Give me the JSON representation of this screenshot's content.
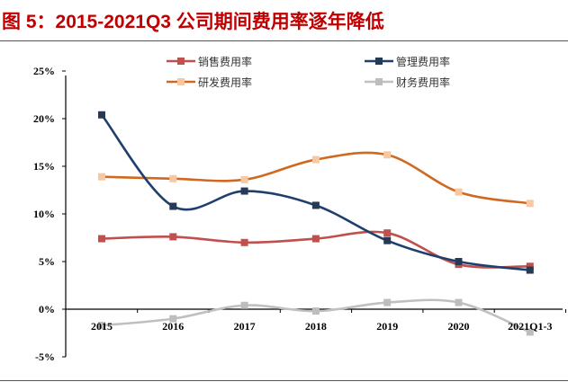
{
  "title": "图 5：2015-2021Q3 公司期间费用率逐年降低",
  "chart_data": {
    "type": "line",
    "title": "图 5：2015-2021Q3 公司期间费用率逐年降低",
    "categories": [
      "2015",
      "2016",
      "2017",
      "2018",
      "2019",
      "2020",
      "2021Q1-3"
    ],
    "ylim": [
      -5,
      25
    ],
    "yticks": [
      "-5%",
      "0%",
      "5%",
      "10%",
      "15%",
      "20%",
      "25%"
    ],
    "ytick_values": [
      -5,
      0,
      5,
      10,
      15,
      20,
      25
    ],
    "grid": false,
    "legend_position": "top",
    "smooth": true,
    "series": [
      {
        "name": "销售费用率",
        "color": "#C0504D",
        "marker": "#C0504D",
        "values": [
          7.4,
          7.6,
          7.0,
          7.4,
          8.0,
          4.7,
          4.5
        ]
      },
      {
        "name": "管理费用率",
        "color": "#1F3F6E",
        "marker": "#263A55",
        "values": [
          20.4,
          10.8,
          12.4,
          10.9,
          7.2,
          5.0,
          4.1
        ]
      },
      {
        "name": "研发费用率",
        "color": "#D0691F",
        "marker": "#F8C8A0",
        "values": [
          13.9,
          13.7,
          13.6,
          15.7,
          16.2,
          12.3,
          11.1
        ]
      },
      {
        "name": "财务费用率",
        "color": "#C0C0C0",
        "marker": "#BDBDBD",
        "values": [
          -1.7,
          -1.0,
          0.4,
          -0.2,
          0.7,
          0.7,
          -2.4
        ]
      }
    ]
  }
}
